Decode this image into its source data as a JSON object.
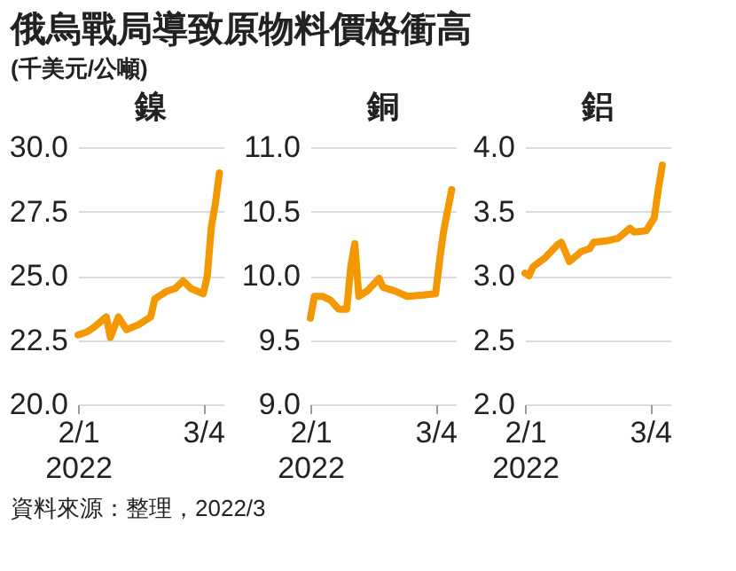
{
  "chart_data": [
    {
      "type": "other",
      "title": "俄烏戰局導致原物料價格衝高",
      "subtitle": "(千美元/公噸)"
    },
    {
      "type": "line",
      "title": "鎳",
      "x": [
        "2022-02-01",
        "2022-02-03",
        "2022-02-05",
        "2022-02-08",
        "2022-02-09",
        "2022-02-11",
        "2022-02-13",
        "2022-02-16",
        "2022-02-19",
        "2022-02-20",
        "2022-02-23",
        "2022-02-25",
        "2022-02-27",
        "2022-03-01",
        "2022-03-04",
        "2022-03-05",
        "2022-03-06",
        "2022-03-07",
        "2022-03-08"
      ],
      "series": [
        {
          "color": "#f39800",
          "values": [
            22.7,
            22.8,
            23.0,
            23.4,
            22.6,
            23.4,
            22.9,
            23.1,
            23.4,
            24.1,
            24.4,
            24.5,
            24.8,
            24.5,
            24.3,
            25.0,
            26.9,
            27.8,
            29.0
          ]
        }
      ],
      "xlim": [
        "2022-02-01",
        "2022-03-09"
      ],
      "xticks": [
        {
          "value": "2022-02-01",
          "label": "2/1\n2022"
        },
        {
          "value": "2022-03-04",
          "label": "3/4"
        }
      ],
      "ylim": [
        20,
        30
      ],
      "yticks": [
        {
          "value": 20,
          "label": "20.0"
        },
        {
          "value": 22.5,
          "label": "22.5"
        },
        {
          "value": 25,
          "label": "25.0"
        },
        {
          "value": 27.5,
          "label": "27.5"
        },
        {
          "value": 30,
          "label": "30.0"
        }
      ],
      "grid": "y"
    },
    {
      "type": "line",
      "title": "銅",
      "x": [
        "2022-02-01",
        "2022-02-02",
        "2022-02-04",
        "2022-02-06",
        "2022-02-08",
        "2022-02-10",
        "2022-02-11",
        "2022-02-12",
        "2022-02-13",
        "2022-02-15",
        "2022-02-18",
        "2022-02-19",
        "2022-02-22",
        "2022-02-25",
        "2022-03-01",
        "2022-03-04",
        "2022-03-05",
        "2022-03-06",
        "2022-03-08"
      ],
      "series": [
        {
          "color": "#f39800",
          "values": [
            9.67,
            9.84,
            9.84,
            9.81,
            9.74,
            9.74,
            10.07,
            10.25,
            9.84,
            9.88,
            9.98,
            9.91,
            9.88,
            9.84,
            9.85,
            9.86,
            10.12,
            10.35,
            10.67
          ]
        }
      ],
      "xlim": [
        "2022-02-01",
        "2022-03-09"
      ],
      "xticks": [
        {
          "value": "2022-02-01",
          "label": "2/1\n2022"
        },
        {
          "value": "2022-03-04",
          "label": "3/4"
        }
      ],
      "ylim": [
        9,
        11
      ],
      "yticks": [
        {
          "value": 9,
          "label": "9.0"
        },
        {
          "value": 9.5,
          "label": "9.5"
        },
        {
          "value": 10,
          "label": "10.0"
        },
        {
          "value": 10.5,
          "label": "10.5"
        },
        {
          "value": 11,
          "label": "11.0"
        }
      ],
      "grid": "y"
    },
    {
      "type": "line",
      "title": "鋁",
      "x": [
        "2022-02-01",
        "2022-02-02",
        "2022-02-03",
        "2022-02-06",
        "2022-02-09",
        "2022-02-10",
        "2022-02-12",
        "2022-02-15",
        "2022-02-17",
        "2022-02-18",
        "2022-02-21",
        "2022-02-24",
        "2022-02-27",
        "2022-02-28",
        "2022-03-03",
        "2022-03-05",
        "2022-03-06",
        "2022-03-07"
      ],
      "series": [
        {
          "color": "#f39800",
          "values": [
            3.02,
            3.0,
            3.07,
            3.14,
            3.24,
            3.26,
            3.11,
            3.19,
            3.21,
            3.26,
            3.27,
            3.29,
            3.37,
            3.34,
            3.35,
            3.45,
            3.67,
            3.86
          ]
        }
      ],
      "xlim": [
        "2022-02-01",
        "2022-03-09"
      ],
      "xticks": [
        {
          "value": "2022-02-01",
          "label": "2/1\n2022"
        },
        {
          "value": "2022-03-04",
          "label": "3/4"
        }
      ],
      "ylim": [
        2,
        4
      ],
      "yticks": [
        {
          "value": 2,
          "label": "2.0"
        },
        {
          "value": 2.5,
          "label": "2.5"
        },
        {
          "value": 3,
          "label": "3.0"
        },
        {
          "value": 3.5,
          "label": "3.5"
        },
        {
          "value": 4,
          "label": "4.0"
        }
      ],
      "grid": "y"
    },
    {
      "type": "other",
      "annotations": [
        "資料來源：整理，2022/3"
      ]
    }
  ]
}
